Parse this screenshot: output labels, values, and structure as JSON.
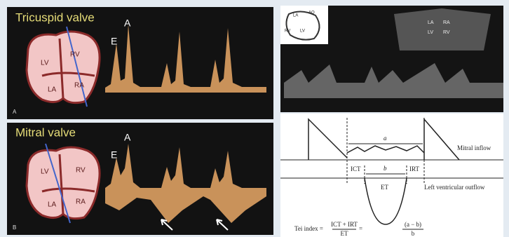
{
  "panels": [
    {
      "title": "Tricuspid valve",
      "label": "A",
      "waves": [
        "E",
        "A"
      ],
      "chambers": [
        "LV",
        "RV",
        "LA",
        "RA"
      ]
    },
    {
      "title": "Mitral valve",
      "label": "B",
      "waves": [
        "E",
        "A"
      ],
      "chambers": [
        "LV",
        "RV",
        "LA",
        "RA"
      ]
    }
  ],
  "echo": {
    "diagram_labels": [
      "LA",
      "AO",
      "RV",
      "LV"
    ],
    "image_labels": [
      "LA",
      "RA",
      "LV",
      "RV"
    ]
  },
  "tei": {
    "a": "a",
    "b": "b",
    "ict": "ICT",
    "irt": "IRT",
    "et": "ET",
    "inflow": "Mitral inflow",
    "outflow": "Left ventricular outflow",
    "formula": {
      "lead": "Tei index =",
      "num1": "ICT + IRT",
      "den1": "ET",
      "eq": "=",
      "num2": "(a − b)",
      "den2": "b"
    }
  }
}
